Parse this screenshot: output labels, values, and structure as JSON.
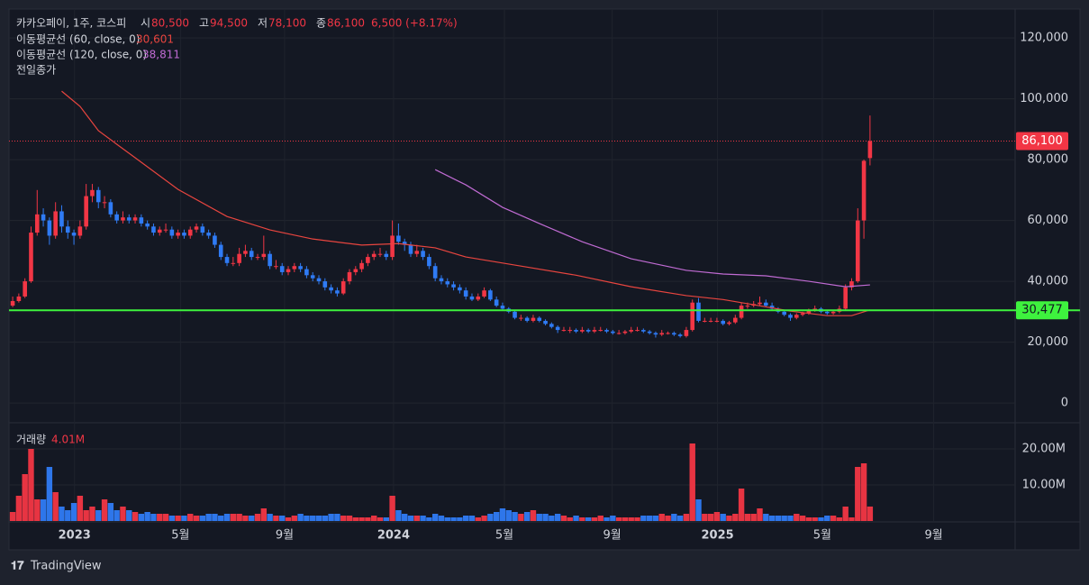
{
  "header": {
    "symbol": "카카오페이, 1주, 코스피",
    "ohlc": [
      {
        "label": "시",
        "value": "80,500"
      },
      {
        "label": "고",
        "value": "94,500"
      },
      {
        "label": "저",
        "value": "78,100"
      },
      {
        "label": "종",
        "value": "86,100"
      }
    ],
    "change": "6,500 (+8.17%)",
    "previous_close": "전일종가",
    "volume_label": "거래량",
    "volume_value": "4.01M"
  },
  "chart_data": {
    "type": "candlestick",
    "up_color": "#f23645",
    "down_color": "#2f7bf5",
    "grid": true,
    "xlim": [
      -0.6,
      163.7
    ],
    "xticks": [
      {
        "value": 10.1,
        "label": "2023"
      },
      {
        "value": 27.4,
        "label": "5월"
      },
      {
        "value": 44.4,
        "label": "9월"
      },
      {
        "value": 62.2,
        "label": "2024"
      },
      {
        "value": 80.3,
        "label": "5월"
      },
      {
        "value": 97.9,
        "label": "9월"
      },
      {
        "value": 115.1,
        "label": "2025"
      },
      {
        "value": 132.2,
        "label": "5월"
      },
      {
        "value": 150.4,
        "label": "9월"
      }
    ],
    "ylim": [
      -6200,
      129500
    ],
    "yticks": [
      0,
      {
        "value": 20000,
        "label": "20,000"
      },
      {
        "value": 40000,
        "label": "40,000"
      },
      {
        "value": 60000,
        "label": "60,000"
      },
      {
        "value": 80000,
        "label": "80,000"
      },
      {
        "value": 100000,
        "label": "100,000"
      },
      {
        "value": 120000,
        "label": "120,000"
      }
    ],
    "volume_ylim": [
      0,
      27000000
    ],
    "volume_yticks": [
      {
        "value": 10000000,
        "label": "10.00M"
      },
      {
        "value": 20000000,
        "label": "20.00M"
      }
    ],
    "candles": [
      [
        32000,
        35000,
        31500,
        33500
      ],
      [
        33500,
        36000,
        33000,
        35000
      ],
      [
        35000,
        41000,
        34500,
        40000
      ],
      [
        40000,
        58000,
        39500,
        56000
      ],
      [
        56000,
        70000,
        55000,
        62000
      ],
      [
        62000,
        64000,
        58000,
        60000
      ],
      [
        60000,
        61000,
        52000,
        55000
      ],
      [
        55000,
        66000,
        54000,
        63000
      ],
      [
        63000,
        65000,
        56000,
        58000
      ],
      [
        58000,
        60000,
        54000,
        56000
      ],
      [
        56000,
        57000,
        52000,
        55000
      ],
      [
        55000,
        60000,
        54000,
        58000
      ],
      [
        58000,
        72000,
        57000,
        68000
      ],
      [
        68000,
        72000,
        66000,
        70000
      ],
      [
        70000,
        71000,
        64000,
        66000
      ],
      [
        66000,
        68000,
        64000,
        66000
      ],
      [
        66000,
        67000,
        61000,
        62000
      ],
      [
        62000,
        63000,
        59000,
        60000
      ],
      [
        60000,
        63000,
        59000,
        61000
      ],
      [
        61000,
        62000,
        59000,
        60000
      ],
      [
        60000,
        62000,
        59000,
        61000
      ],
      [
        61000,
        62000,
        58000,
        59000
      ],
      [
        59000,
        60000,
        57000,
        58000
      ],
      [
        58000,
        59000,
        55000,
        56000
      ],
      [
        56000,
        58000,
        55000,
        57000
      ],
      [
        57000,
        59000,
        56000,
        57000
      ],
      [
        57000,
        58000,
        54000,
        55000
      ],
      [
        55000,
        57000,
        54000,
        56000
      ],
      [
        56000,
        57000,
        54000,
        55000
      ],
      [
        55000,
        58000,
        54000,
        57000
      ],
      [
        57000,
        59000,
        56000,
        58000
      ],
      [
        58000,
        59000,
        55000,
        56000
      ],
      [
        56000,
        57000,
        54000,
        55000
      ],
      [
        55000,
        56000,
        51000,
        52000
      ],
      [
        52000,
        53000,
        47000,
        48000
      ],
      [
        48000,
        49000,
        45000,
        46000
      ],
      [
        46000,
        48000,
        45000,
        46000
      ],
      [
        46000,
        51000,
        45000,
        49000
      ],
      [
        49000,
        52000,
        48000,
        50000
      ],
      [
        50000,
        51000,
        47000,
        48000
      ],
      [
        48000,
        49000,
        47000,
        48000
      ],
      [
        48000,
        55000,
        47000,
        49000
      ],
      [
        49000,
        50000,
        44000,
        45000
      ],
      [
        45000,
        47000,
        44000,
        45000
      ],
      [
        45000,
        46000,
        42000,
        43000
      ],
      [
        43000,
        45000,
        42000,
        44000
      ],
      [
        44000,
        46000,
        43000,
        45000
      ],
      [
        45000,
        46000,
        43000,
        44000
      ],
      [
        44000,
        45000,
        41000,
        42000
      ],
      [
        42000,
        43000,
        40000,
        41000
      ],
      [
        41000,
        42000,
        39000,
        40000
      ],
      [
        40000,
        41000,
        37000,
        38000
      ],
      [
        38000,
        39000,
        36000,
        37000
      ],
      [
        37000,
        38000,
        35000,
        36000
      ],
      [
        36000,
        41000,
        35500,
        40000
      ],
      [
        40000,
        44000,
        39000,
        43000
      ],
      [
        43000,
        45000,
        42000,
        44000
      ],
      [
        44000,
        47000,
        43000,
        46000
      ],
      [
        46000,
        49000,
        45000,
        48000
      ],
      [
        48000,
        50000,
        47000,
        49000
      ],
      [
        49000,
        51000,
        48000,
        49000
      ],
      [
        49000,
        50000,
        47000,
        48000
      ],
      [
        48000,
        60000,
        47000,
        55000
      ],
      [
        55000,
        59000,
        52000,
        53000
      ],
      [
        53000,
        54000,
        50000,
        52000
      ],
      [
        52000,
        53000,
        48000,
        49000
      ],
      [
        49000,
        52000,
        48000,
        50000
      ],
      [
        50000,
        51000,
        47000,
        48000
      ],
      [
        48000,
        49000,
        44000,
        45000
      ],
      [
        45000,
        46000,
        40000,
        41000
      ],
      [
        41000,
        42000,
        39000,
        40000
      ],
      [
        40000,
        41000,
        38000,
        39000
      ],
      [
        39000,
        40000,
        37000,
        38000
      ],
      [
        38000,
        39000,
        36000,
        37000
      ],
      [
        37000,
        38000,
        34000,
        35000
      ],
      [
        35000,
        36000,
        33500,
        34000
      ],
      [
        34000,
        36000,
        33500,
        35000
      ],
      [
        35000,
        38000,
        34500,
        37000
      ],
      [
        37000,
        37500,
        33500,
        34000
      ],
      [
        34000,
        35000,
        31500,
        32000
      ],
      [
        32000,
        33000,
        30500,
        31000
      ],
      [
        31000,
        31500,
        29500,
        30000
      ],
      [
        30000,
        30500,
        27500,
        28000
      ],
      [
        28000,
        29000,
        27000,
        28000
      ],
      [
        28000,
        28500,
        26500,
        27000
      ],
      [
        27000,
        29000,
        26500,
        28000
      ],
      [
        28000,
        28500,
        26500,
        27000
      ],
      [
        27000,
        27500,
        25500,
        26000
      ],
      [
        26000,
        26500,
        24500,
        25000
      ],
      [
        25000,
        25500,
        23000,
        24000
      ],
      [
        24000,
        25000,
        23500,
        24000
      ],
      [
        24000,
        25000,
        23000,
        24000
      ],
      [
        24000,
        24500,
        23000,
        23500
      ],
      [
        23500,
        25000,
        23000,
        24000
      ],
      [
        24000,
        24500,
        23000,
        23500
      ],
      [
        23500,
        25000,
        23000,
        24000
      ],
      [
        24000,
        25000,
        23500,
        24000
      ],
      [
        24000,
        24500,
        23000,
        23500
      ],
      [
        23500,
        24000,
        22500,
        23000
      ],
      [
        23000,
        24000,
        22500,
        23000
      ],
      [
        23000,
        24000,
        22500,
        23500
      ],
      [
        23500,
        25000,
        23000,
        24000
      ],
      [
        24000,
        25000,
        23500,
        24000
      ],
      [
        24000,
        24500,
        23000,
        23500
      ],
      [
        23500,
        24000,
        22500,
        23000
      ],
      [
        23000,
        23500,
        21500,
        22500
      ],
      [
        22500,
        24000,
        22000,
        23000
      ],
      [
        23000,
        23500,
        22500,
        23000
      ],
      [
        23000,
        23500,
        22000,
        22500
      ],
      [
        22500,
        23000,
        21500,
        22000
      ],
      [
        22000,
        25000,
        21500,
        24000
      ],
      [
        24000,
        34000,
        23500,
        33000
      ],
      [
        33000,
        34500,
        26500,
        27000
      ],
      [
        27000,
        28000,
        26500,
        27000
      ],
      [
        27000,
        28000,
        26500,
        27000
      ],
      [
        27000,
        28000,
        26500,
        27000
      ],
      [
        27000,
        27500,
        25500,
        26000
      ],
      [
        26000,
        27000,
        25500,
        26500
      ],
      [
        26500,
        29000,
        26000,
        28000
      ],
      [
        28000,
        33000,
        27500,
        32000
      ],
      [
        32000,
        33000,
        31000,
        32000
      ],
      [
        32000,
        33500,
        31500,
        32500
      ],
      [
        32500,
        35000,
        32000,
        33000
      ],
      [
        33000,
        34000,
        31500,
        32000
      ],
      [
        32000,
        33000,
        30500,
        31000
      ],
      [
        31000,
        31500,
        29500,
        30000
      ],
      [
        30000,
        30500,
        28500,
        29000
      ],
      [
        29000,
        29500,
        27000,
        28000
      ],
      [
        28000,
        29500,
        27500,
        29000
      ],
      [
        29000,
        30000,
        28500,
        29500
      ],
      [
        29500,
        31000,
        29000,
        30500
      ],
      [
        30500,
        32000,
        30000,
        31000
      ],
      [
        31000,
        31500,
        29500,
        30000
      ],
      [
        30000,
        30500,
        29000,
        29500
      ],
      [
        29500,
        30500,
        29000,
        30000
      ],
      [
        30000,
        32000,
        29500,
        31000
      ],
      [
        31000,
        39000,
        30500,
        38000
      ],
      [
        38000,
        41000,
        37000,
        40000
      ],
      [
        40000,
        64000,
        39500,
        60000
      ],
      [
        60000,
        80000,
        54000,
        79600
      ],
      [
        80500,
        94500,
        78100,
        86100
      ]
    ],
    "volumes": [
      2500000,
      7000000,
      13000000,
      20000000,
      6000000,
      6000000,
      15000000,
      8000000,
      4000000,
      3000000,
      5000000,
      7000000,
      3000000,
      4000000,
      3000000,
      6000000,
      5000000,
      3000000,
      4000000,
      3000000,
      2500000,
      2000000,
      2500000,
      2000000,
      2000000,
      2000000,
      1500000,
      1500000,
      1500000,
      2000000,
      1500000,
      1500000,
      2000000,
      2000000,
      1500000,
      2000000,
      2000000,
      2000000,
      1500000,
      1500000,
      2000000,
      3500000,
      2000000,
      1500000,
      1500000,
      1000000,
      1500000,
      2000000,
      1500000,
      1500000,
      1500000,
      1500000,
      2000000,
      2000000,
      1500000,
      1500000,
      1000000,
      1000000,
      1000000,
      1500000,
      1000000,
      1000000,
      7000000,
      3000000,
      2000000,
      1500000,
      1500000,
      1500000,
      1000000,
      2000000,
      1500000,
      1000000,
      1000000,
      1000000,
      1500000,
      1500000,
      1000000,
      1500000,
      2000000,
      2500000,
      3500000,
      3000000,
      2500000,
      2000000,
      2500000,
      3000000,
      2000000,
      2000000,
      1500000,
      2000000,
      1500000,
      1000000,
      1500000,
      1000000,
      1000000,
      1000000,
      1500000,
      1000000,
      1500000,
      1000000,
      1000000,
      1000000,
      1000000,
      1500000,
      1500000,
      1500000,
      2000000,
      1500000,
      2000000,
      1500000,
      2000000,
      21500000,
      6000000,
      2000000,
      2000000,
      2500000,
      2000000,
      1500000,
      2000000,
      9000000,
      2000000,
      2000000,
      3500000,
      2000000,
      1500000,
      1500000,
      1500000,
      1500000,
      2000000,
      1500000,
      1000000,
      1000000,
      1000000,
      1500000,
      1500000,
      1000000,
      4000000,
      1000000,
      15000000,
      16000000,
      4010000
    ],
    "moving_averages": [
      {
        "name": "이동평균선 (60, close, 0)",
        "value_label": "30,601",
        "color": "#e8453f",
        "x": [
          8,
          11,
          14,
          20,
          27,
          35,
          42,
          49,
          57,
          63,
          69,
          74,
          83,
          92,
          101,
          110,
          116,
          121,
          127,
          133,
          137,
          140
        ],
        "values": [
          102500,
          97500,
          89500,
          80600,
          70200,
          61300,
          56900,
          53900,
          51900,
          52400,
          51000,
          48000,
          45000,
          42000,
          38200,
          35300,
          34000,
          32300,
          30200,
          28700,
          28700,
          30601
        ]
      },
      {
        "name": "이동평균선 (120, close, 0)",
        "value_label": "38,811",
        "color": "#c06bd3",
        "x": [
          69,
          74,
          80,
          86,
          93,
          101,
          110,
          116,
          123,
          130,
          136,
          140
        ],
        "values": [
          76700,
          71700,
          64300,
          59000,
          53000,
          47400,
          43600,
          42400,
          41800,
          40000,
          38200,
          38811
        ]
      }
    ],
    "horizontal_line": {
      "value": 30477,
      "label": "30,477",
      "color": "#3ef23e"
    },
    "last_price": {
      "value": 86100,
      "label": "86,100",
      "color": "#f23645"
    }
  },
  "footer": {
    "brand": "TradingView"
  }
}
